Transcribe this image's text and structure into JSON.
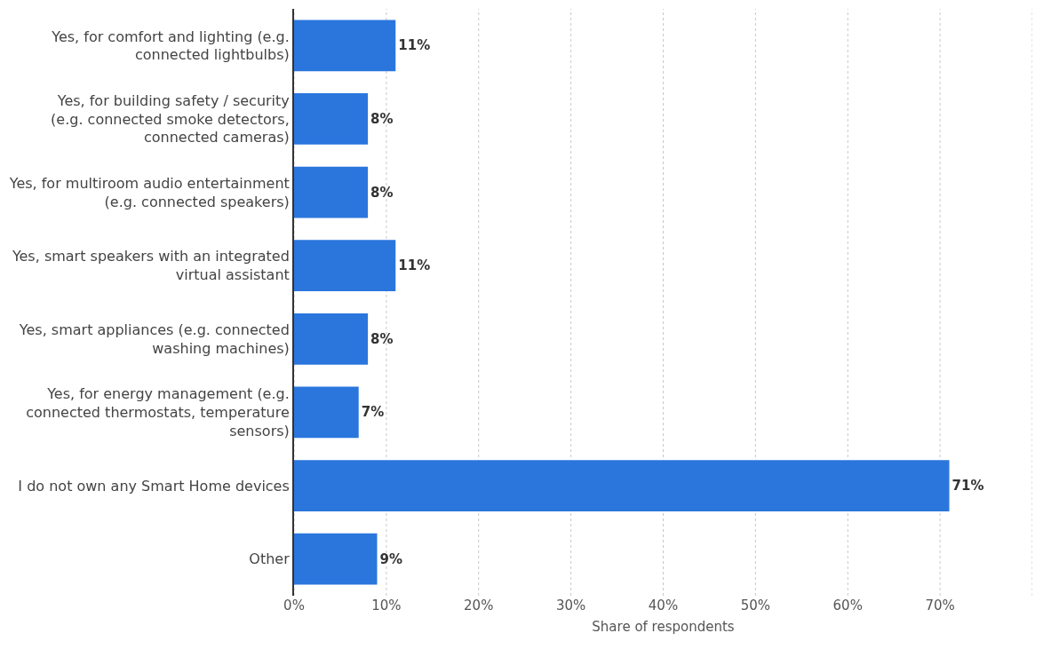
{
  "chart_data": {
    "type": "bar",
    "orientation": "horizontal",
    "xlabel": "Share of respondents",
    "categories": [
      "Yes, for comfort and lighting (e.g. connected lightbulbs)",
      "Yes, for building safety / security (e.g. connected smoke detectors, connected cameras)",
      "Yes, for multiroom audio entertainment (e.g. connected speakers)",
      "Yes, smart speakers with an integrated virtual assistant",
      "Yes, smart appliances (e.g. connected washing machines)",
      "Yes, for energy management (e.g. connected thermostats, temperature sensors)",
      "I do not own any Smart Home devices",
      "Other"
    ],
    "values": [
      11,
      8,
      8,
      11,
      8,
      7,
      71,
      9
    ],
    "value_labels": [
      "11%",
      "8%",
      "8%",
      "11%",
      "8%",
      "7%",
      "71%",
      "9%"
    ],
    "color": "#2a76dd",
    "xlim": [
      0,
      80
    ],
    "xticks": [
      {
        "value": 0,
        "label": "0%"
      },
      {
        "value": 10,
        "label": "10%"
      },
      {
        "value": 20,
        "label": "20%"
      },
      {
        "value": 30,
        "label": "30%"
      },
      {
        "value": 40,
        "label": "40%"
      },
      {
        "value": 50,
        "label": "50%"
      },
      {
        "value": 60,
        "label": "60%"
      },
      {
        "value": 70,
        "label": "70%"
      },
      {
        "value": 80,
        "label": null
      }
    ],
    "grid": "x"
  }
}
